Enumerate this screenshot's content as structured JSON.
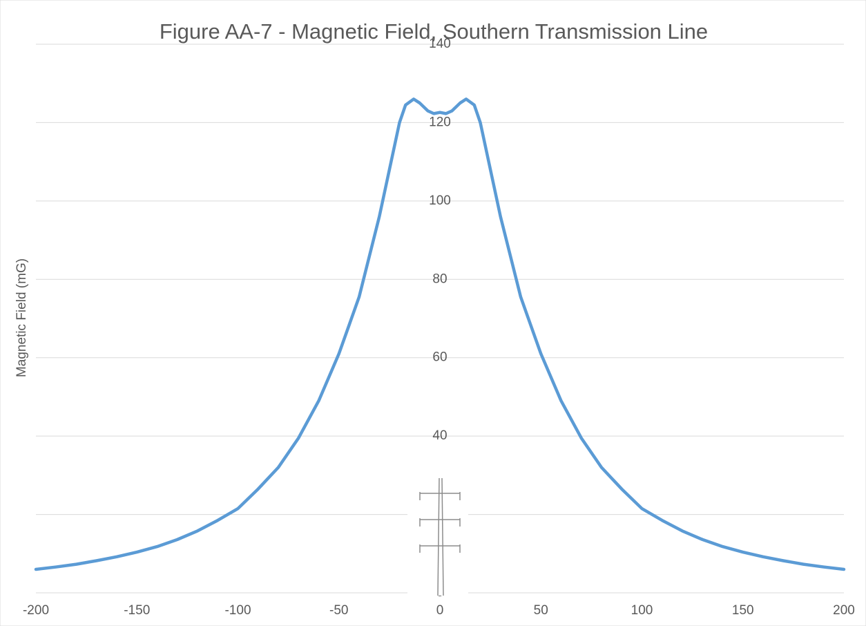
{
  "chart_data": {
    "type": "line",
    "title": "Figure AA-7 - Magnetic Field, Southern Transmission Line",
    "y_label": "Magnetic  Field (mG)",
    "x": [
      -200,
      -190,
      -180,
      -170,
      -160,
      -150,
      -140,
      -130,
      -120,
      -110,
      -100,
      -90,
      -80,
      -70,
      -60,
      -50,
      -40,
      -30,
      -25,
      -20,
      -17,
      -13,
      -10,
      -6,
      -3,
      0,
      3,
      6,
      10,
      13,
      17,
      20,
      25,
      30,
      40,
      50,
      60,
      70,
      80,
      90,
      100,
      110,
      120,
      130,
      140,
      150,
      160,
      170,
      180,
      190,
      200
    ],
    "series": [
      {
        "name": "Magnetic Field",
        "color": "#5b9bd5",
        "values": [
          6,
          6.6,
          7.3,
          8.2,
          9.2,
          10.4,
          11.8,
          13.6,
          15.8,
          18.5,
          21.5,
          26.5,
          32,
          39.5,
          49,
          61,
          75.5,
          96,
          108,
          120,
          124.5,
          126,
          125,
          123,
          122.3,
          122.6,
          122.3,
          123,
          125,
          126,
          124.5,
          120,
          108,
          96,
          75.5,
          61,
          49,
          39.5,
          32,
          26.5,
          21.5,
          18.5,
          15.8,
          13.6,
          11.8,
          10.4,
          9.2,
          8.2,
          7.3,
          6.6,
          6
        ]
      }
    ],
    "xlim": [
      -200,
      200
    ],
    "xticks": [
      -200,
      -150,
      -100,
      -50,
      0,
      50,
      100,
      150,
      200
    ],
    "ylim": [
      0,
      140
    ],
    "yticks": [
      0,
      20,
      40,
      60,
      80,
      100,
      120,
      140
    ],
    "grid": true
  }
}
